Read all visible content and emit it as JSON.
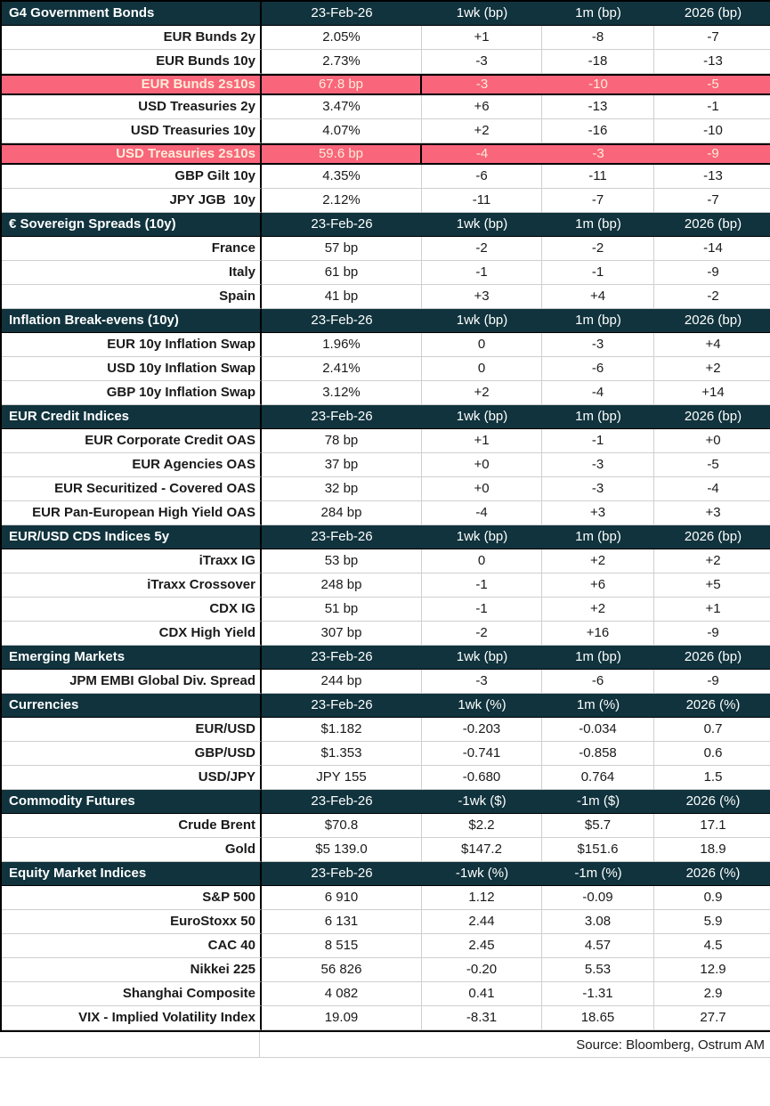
{
  "colors": {
    "section_header_bg": "#10333d",
    "section_header_text": "#ffffff",
    "highlight_bg": "#f9657b",
    "highlight_text": "#fcedd8",
    "grid_line": "#cfcfcf",
    "outer_border": "#000000"
  },
  "footer": {
    "source": "Source: Bloomberg, Ostrum AM"
  },
  "sections": [
    {
      "title": "G4 Government Bonds",
      "columns": [
        "23-Feb-26",
        "1wk (bp)",
        "1m (bp)",
        "2026 (bp)"
      ],
      "rows": [
        {
          "label": "EUR Bunds 2y",
          "values": [
            "2.05%",
            "+1",
            "-8",
            "-7"
          ],
          "highlight": false
        },
        {
          "label": "EUR Bunds 10y",
          "values": [
            "2.73%",
            "-3",
            "-18",
            "-13"
          ],
          "highlight": false
        },
        {
          "label": "EUR Bunds 2s10s",
          "values": [
            "67.8 bp",
            "-3",
            "-10",
            "-5"
          ],
          "highlight": true
        },
        {
          "label": "USD Treasuries 2y",
          "values": [
            "3.47%",
            "+6",
            "-13",
            "-1"
          ],
          "highlight": false
        },
        {
          "label": "USD Treasuries 10y",
          "values": [
            "4.07%",
            "+2",
            "-16",
            "-10"
          ],
          "highlight": false
        },
        {
          "label": "USD Treasuries 2s10s",
          "values": [
            "59.6 bp",
            "-4",
            "-3",
            "-9"
          ],
          "highlight": true
        },
        {
          "label": "GBP Gilt 10y",
          "values": [
            "4.35%",
            "-6",
            "-11",
            "-13"
          ],
          "highlight": false
        },
        {
          "label": "JPY JGB  10y",
          "values": [
            "2.12%",
            "-11",
            "-7",
            "-7"
          ],
          "highlight": false
        }
      ]
    },
    {
      "title": "€ Sovereign Spreads (10y)",
      "columns": [
        "23-Feb-26",
        "1wk (bp)",
        "1m (bp)",
        "2026 (bp)"
      ],
      "rows": [
        {
          "label": "France",
          "values": [
            "57 bp",
            "-2",
            "-2",
            "-14"
          ],
          "highlight": false
        },
        {
          "label": "Italy",
          "values": [
            "61 bp",
            "-1",
            "-1",
            "-9"
          ],
          "highlight": false
        },
        {
          "label": "Spain",
          "values": [
            "41 bp",
            "+3",
            "+4",
            "-2"
          ],
          "highlight": false
        }
      ]
    },
    {
      "title": "Inflation Break-evens (10y)",
      "columns": [
        "23-Feb-26",
        "1wk (bp)",
        "1m (bp)",
        "2026 (bp)"
      ],
      "rows": [
        {
          "label": "EUR 10y Inflation Swap",
          "values": [
            "1.96%",
            "0",
            "-3",
            "+4"
          ],
          "highlight": false
        },
        {
          "label": "USD 10y Inflation Swap",
          "values": [
            "2.41%",
            "0",
            "-6",
            "+2"
          ],
          "highlight": false
        },
        {
          "label": "GBP 10y Inflation Swap",
          "values": [
            "3.12%",
            "+2",
            "-4",
            "+14"
          ],
          "highlight": false
        }
      ]
    },
    {
      "title": "EUR Credit Indices",
      "columns": [
        "23-Feb-26",
        "1wk (bp)",
        "1m (bp)",
        "2026 (bp)"
      ],
      "rows": [
        {
          "label": "EUR Corporate Credit OAS",
          "values": [
            "78 bp",
            "+1",
            "-1",
            "+0"
          ],
          "highlight": false
        },
        {
          "label": "EUR Agencies OAS",
          "values": [
            "37 bp",
            "+0",
            "-3",
            "-5"
          ],
          "highlight": false
        },
        {
          "label": "EUR Securitized - Covered OAS",
          "values": [
            "32 bp",
            "+0",
            "-3",
            "-4"
          ],
          "highlight": false
        },
        {
          "label": "EUR Pan-European High Yield OAS",
          "values": [
            "284 bp",
            "-4",
            "+3",
            "+3"
          ],
          "highlight": false
        }
      ]
    },
    {
      "title": "EUR/USD CDS Indices 5y",
      "columns": [
        "23-Feb-26",
        "1wk (bp)",
        "1m (bp)",
        "2026 (bp)"
      ],
      "rows": [
        {
          "label": "iTraxx IG",
          "values": [
            "53 bp",
            "0",
            "+2",
            "+2"
          ],
          "highlight": false
        },
        {
          "label": "iTraxx Crossover",
          "values": [
            "248 bp",
            "-1",
            "+6",
            "+5"
          ],
          "highlight": false
        },
        {
          "label": "CDX IG",
          "values": [
            "51 bp",
            "-1",
            "+2",
            "+1"
          ],
          "highlight": false
        },
        {
          "label": "CDX High Yield",
          "values": [
            "307 bp",
            "-2",
            "+16",
            "-9"
          ],
          "highlight": false
        }
      ]
    },
    {
      "title": "Emerging Markets",
      "columns": [
        "23-Feb-26",
        "1wk (bp)",
        "1m (bp)",
        "2026 (bp)"
      ],
      "rows": [
        {
          "label": "JPM EMBI Global Div. Spread",
          "values": [
            "244 bp",
            "-3",
            "-6",
            "-9"
          ],
          "highlight": false
        }
      ]
    },
    {
      "title": "Currencies",
      "columns": [
        "23-Feb-26",
        "1wk (%)",
        "1m (%)",
        "2026 (%)"
      ],
      "rows": [
        {
          "label": "EUR/USD",
          "values": [
            "$1.182",
            "-0.203",
            "-0.034",
            "0.7"
          ],
          "highlight": false
        },
        {
          "label": "GBP/USD",
          "values": [
            "$1.353",
            "-0.741",
            "-0.858",
            "0.6"
          ],
          "highlight": false
        },
        {
          "label": "USD/JPY",
          "values": [
            "JPY 155",
            "-0.680",
            "0.764",
            "1.5"
          ],
          "highlight": false
        }
      ]
    },
    {
      "title": "Commodity Futures",
      "columns": [
        "23-Feb-26",
        "-1wk ($)",
        "-1m ($)",
        "2026 (%)"
      ],
      "rows": [
        {
          "label": "Crude Brent",
          "values": [
            "$70.8",
            "$2.2",
            "$5.7",
            "17.1"
          ],
          "highlight": false
        },
        {
          "label": "Gold",
          "values": [
            "$5 139.0",
            "$147.2",
            "$151.6",
            "18.9"
          ],
          "highlight": false
        }
      ]
    },
    {
      "title": "Equity Market Indices",
      "columns": [
        "23-Feb-26",
        "-1wk (%)",
        "-1m (%)",
        "2026 (%)"
      ],
      "rows": [
        {
          "label": "S&P 500",
          "values": [
            "6 910",
            "1.12",
            "-0.09",
            "0.9"
          ],
          "highlight": false
        },
        {
          "label": "EuroStoxx 50",
          "values": [
            "6 131",
            "2.44",
            "3.08",
            "5.9"
          ],
          "highlight": false
        },
        {
          "label": "CAC 40",
          "values": [
            "8 515",
            "2.45",
            "4.57",
            "4.5"
          ],
          "highlight": false
        },
        {
          "label": "Nikkei 225",
          "values": [
            "56 826",
            "-0.20",
            "5.53",
            "12.9"
          ],
          "highlight": false
        },
        {
          "label": "Shanghai Composite",
          "values": [
            "4 082",
            "0.41",
            "-1.31",
            "2.9"
          ],
          "highlight": false
        },
        {
          "label": "VIX - Implied Volatility Index",
          "values": [
            "19.09",
            "-8.31",
            "18.65",
            "27.7"
          ],
          "highlight": false
        }
      ]
    }
  ]
}
